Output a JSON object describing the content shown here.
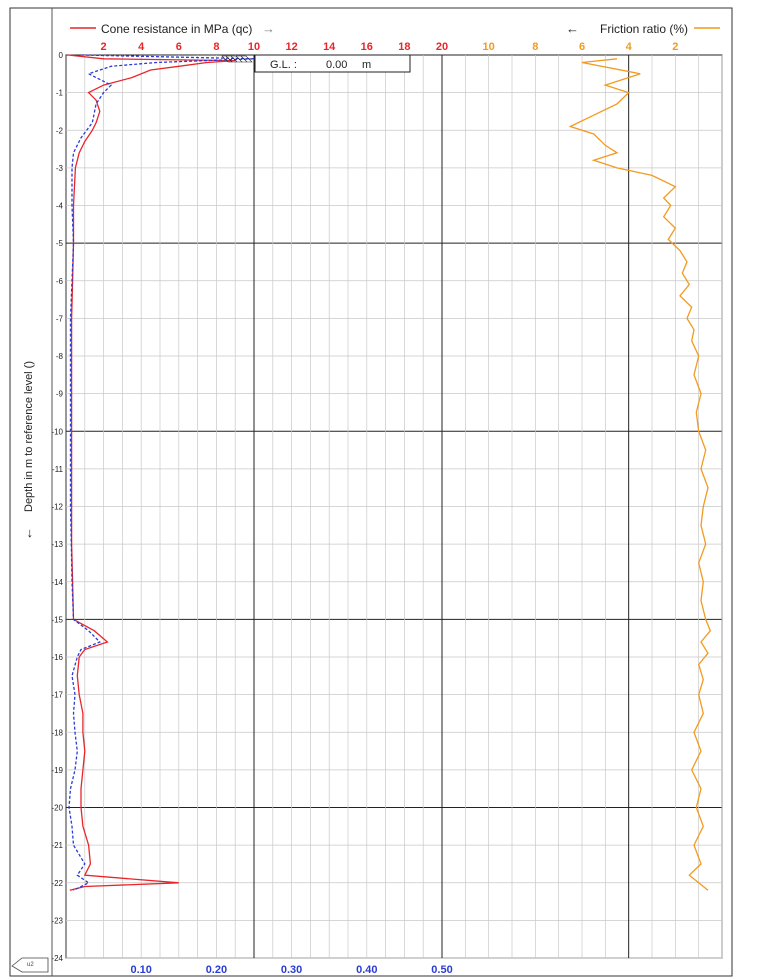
{
  "legend": {
    "qc_label": "Cone resistance in MPa (qc)",
    "qc_arrow": "→",
    "rf_label": "Friction ratio (%)",
    "rf_arrow": "←"
  },
  "gl_box": {
    "label": "G.L. :",
    "value": "0.00",
    "unit": "m"
  },
  "y_axis": {
    "arrow": "←",
    "label": "Depth in m to reference level ()"
  },
  "corner_mark": "u2",
  "colors": {
    "qc": "#e8262a",
    "fs": "#2a3bd6",
    "rf": "#f39a1e",
    "qc_ticks": "#e8262a",
    "rf_ticks": "#f39a1e",
    "fs_ticks": "#2a3bd6"
  },
  "chart_data": {
    "type": "line",
    "y_axis": {
      "label": "Depth in m to reference level ()",
      "range": [
        -24,
        0
      ],
      "ticks": [
        "0",
        "-1",
        "-2",
        "-3",
        "-4",
        "-5",
        "-6",
        "-7",
        "-8",
        "-9",
        "-10",
        "-11",
        "-12",
        "-13",
        "-14",
        "-15",
        "-16",
        "-17",
        "-18",
        "-19",
        "-20",
        "-21",
        "-22",
        "-23",
        "-24"
      ]
    },
    "x_axes": [
      {
        "name": "Cone resistance in MPa (qc)",
        "range": [
          0,
          20
        ],
        "ticks": [
          "2",
          "4",
          "6",
          "8",
          "10",
          "12",
          "14",
          "16",
          "18",
          "20"
        ]
      },
      {
        "name": "Friction ratio (%)",
        "range": [
          12,
          0
        ],
        "reversed": true,
        "ticks": [
          "10",
          "8",
          "6",
          "4",
          "2"
        ]
      },
      {
        "name": "",
        "range": [
          0,
          0.5
        ],
        "ticks": [
          "0.10",
          "0.20",
          "0.30",
          "0.40",
          "0.50"
        ]
      }
    ],
    "series": [
      {
        "name": "Cone resistance in MPa (qc)",
        "axis": 0,
        "points": [
          [
            0.1,
            0
          ],
          [
            2.0,
            -0.1
          ],
          [
            9.0,
            -0.15
          ],
          [
            7.5,
            -0.2
          ],
          [
            6.0,
            -0.3
          ],
          [
            4.5,
            -0.4
          ],
          [
            3.5,
            -0.6
          ],
          [
            2.0,
            -0.8
          ],
          [
            1.2,
            -1.0
          ],
          [
            1.6,
            -1.2
          ],
          [
            1.8,
            -1.5
          ],
          [
            1.6,
            -1.8
          ],
          [
            1.4,
            -2.0
          ],
          [
            1.0,
            -2.3
          ],
          [
            0.7,
            -2.6
          ],
          [
            0.5,
            -3.0
          ],
          [
            0.4,
            -4.0
          ],
          [
            0.4,
            -5.0
          ],
          [
            0.35,
            -6.0
          ],
          [
            0.3,
            -7.0
          ],
          [
            0.3,
            -8.0
          ],
          [
            0.3,
            -9.0
          ],
          [
            0.3,
            -10.0
          ],
          [
            0.3,
            -11.0
          ],
          [
            0.3,
            -12.0
          ],
          [
            0.3,
            -13.0
          ],
          [
            0.35,
            -14.0
          ],
          [
            0.4,
            -15.0
          ],
          [
            1.5,
            -15.3
          ],
          [
            2.2,
            -15.6
          ],
          [
            1.0,
            -15.8
          ],
          [
            0.7,
            -16.0
          ],
          [
            0.6,
            -16.5
          ],
          [
            0.7,
            -17.0
          ],
          [
            0.9,
            -17.5
          ],
          [
            0.9,
            -18.0
          ],
          [
            1.0,
            -18.5
          ],
          [
            0.9,
            -19.0
          ],
          [
            0.8,
            -19.5
          ],
          [
            0.8,
            -20.0
          ],
          [
            0.9,
            -20.5
          ],
          [
            1.2,
            -21.0
          ],
          [
            1.3,
            -21.5
          ],
          [
            1.0,
            -21.8
          ],
          [
            6.0,
            -22.0
          ],
          [
            1.0,
            -22.1
          ],
          [
            0.2,
            -22.2
          ]
        ]
      },
      {
        "name": "",
        "axis": 2,
        "points": [
          [
            0.02,
            0
          ],
          [
            0.25,
            -0.1
          ],
          [
            0.12,
            -0.2
          ],
          [
            0.06,
            -0.3
          ],
          [
            0.03,
            -0.5
          ],
          [
            0.06,
            -0.8
          ],
          [
            0.05,
            -1.0
          ],
          [
            0.04,
            -1.3
          ],
          [
            0.035,
            -1.8
          ],
          [
            0.02,
            -2.2
          ],
          [
            0.01,
            -2.6
          ],
          [
            0.008,
            -3.0
          ],
          [
            0.008,
            -4.0
          ],
          [
            0.01,
            -5.0
          ],
          [
            0.008,
            -6.0
          ],
          [
            0.006,
            -7.0
          ],
          [
            0.006,
            -8.0
          ],
          [
            0.006,
            -9.0
          ],
          [
            0.006,
            -10.0
          ],
          [
            0.006,
            -11.0
          ],
          [
            0.006,
            -12.0
          ],
          [
            0.007,
            -13.0
          ],
          [
            0.008,
            -14.0
          ],
          [
            0.01,
            -15.0
          ],
          [
            0.03,
            -15.3
          ],
          [
            0.045,
            -15.6
          ],
          [
            0.02,
            -15.8
          ],
          [
            0.015,
            -16.0
          ],
          [
            0.008,
            -16.5
          ],
          [
            0.012,
            -17.0
          ],
          [
            0.01,
            -17.5
          ],
          [
            0.012,
            -18.0
          ],
          [
            0.015,
            -18.5
          ],
          [
            0.012,
            -19.0
          ],
          [
            0.006,
            -19.5
          ],
          [
            0.004,
            -20.0
          ],
          [
            0.008,
            -20.5
          ],
          [
            0.01,
            -21.0
          ],
          [
            0.025,
            -21.5
          ],
          [
            0.015,
            -21.8
          ],
          [
            0.03,
            -22.0
          ],
          [
            0.01,
            -22.2
          ]
        ]
      },
      {
        "name": "Friction ratio (%)",
        "axis": 1,
        "points": [
          [
            4.5,
            -0.1
          ],
          [
            6.0,
            -0.2
          ],
          [
            3.5,
            -0.5
          ],
          [
            5.0,
            -0.8
          ],
          [
            4.0,
            -1.0
          ],
          [
            4.5,
            -1.3
          ],
          [
            5.5,
            -1.6
          ],
          [
            6.5,
            -1.9
          ],
          [
            5.5,
            -2.1
          ],
          [
            5.0,
            -2.4
          ],
          [
            4.5,
            -2.6
          ],
          [
            5.5,
            -2.8
          ],
          [
            4.5,
            -3.0
          ],
          [
            3.0,
            -3.2
          ],
          [
            2.0,
            -3.5
          ],
          [
            2.5,
            -3.8
          ],
          [
            2.2,
            -4.0
          ],
          [
            2.5,
            -4.3
          ],
          [
            2.0,
            -4.6
          ],
          [
            2.3,
            -4.9
          ],
          [
            1.8,
            -5.2
          ],
          [
            1.5,
            -5.5
          ],
          [
            1.7,
            -5.8
          ],
          [
            1.4,
            -6.1
          ],
          [
            1.8,
            -6.4
          ],
          [
            1.3,
            -6.7
          ],
          [
            1.5,
            -7.0
          ],
          [
            1.2,
            -7.3
          ],
          [
            1.3,
            -7.6
          ],
          [
            1.0,
            -8.0
          ],
          [
            1.2,
            -8.5
          ],
          [
            0.9,
            -9.0
          ],
          [
            1.1,
            -9.5
          ],
          [
            1.0,
            -10.0
          ],
          [
            0.7,
            -10.5
          ],
          [
            0.9,
            -11.0
          ],
          [
            0.6,
            -11.5
          ],
          [
            0.8,
            -12.0
          ],
          [
            0.9,
            -12.5
          ],
          [
            0.7,
            -13.0
          ],
          [
            1.0,
            -13.5
          ],
          [
            0.8,
            -14.0
          ],
          [
            0.9,
            -14.5
          ],
          [
            0.7,
            -15.0
          ],
          [
            0.5,
            -15.3
          ],
          [
            0.9,
            -15.6
          ],
          [
            0.6,
            -15.9
          ],
          [
            1.0,
            -16.2
          ],
          [
            0.8,
            -16.6
          ],
          [
            1.0,
            -17.0
          ],
          [
            0.8,
            -17.5
          ],
          [
            1.2,
            -18.0
          ],
          [
            0.9,
            -18.5
          ],
          [
            1.3,
            -19.0
          ],
          [
            0.9,
            -19.5
          ],
          [
            1.1,
            -20.0
          ],
          [
            0.8,
            -20.5
          ],
          [
            1.2,
            -21.0
          ],
          [
            0.9,
            -21.5
          ],
          [
            1.4,
            -21.8
          ],
          [
            1.0,
            -22.0
          ],
          [
            0.6,
            -22.2
          ]
        ]
      }
    ]
  }
}
